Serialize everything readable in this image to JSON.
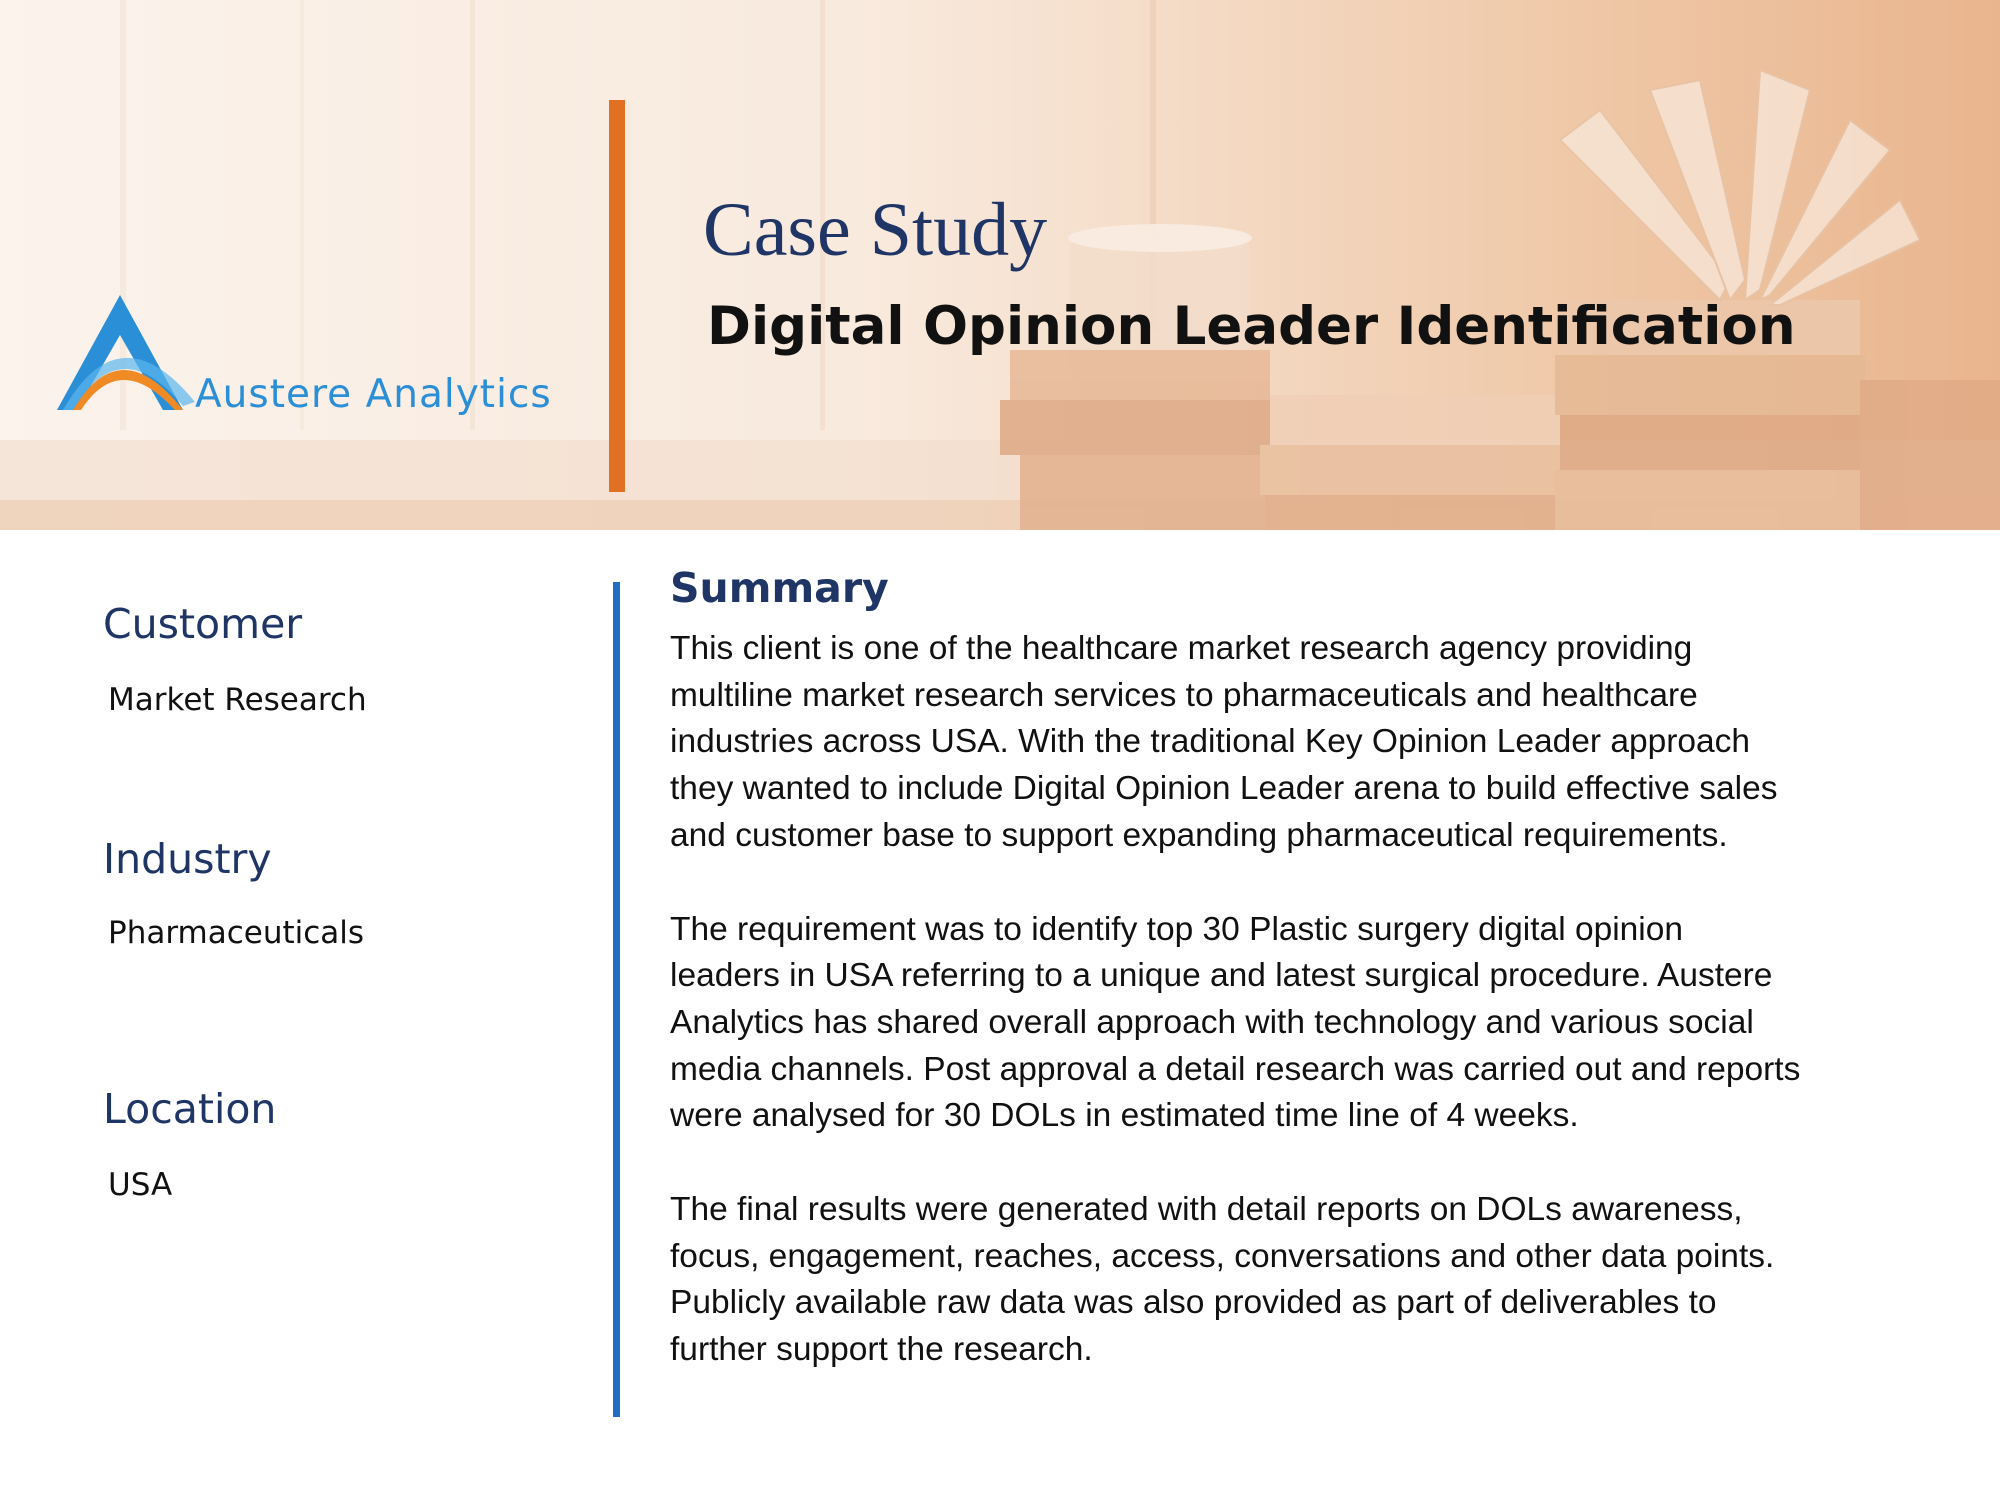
{
  "header": {
    "brand": "Austere Analytics",
    "label": "Case Study",
    "title": "Digital Opinion Leader Identification"
  },
  "colors": {
    "navy": "#1f3566",
    "orange_accent": "#e07022",
    "blue_accent": "#1f6fc7",
    "logo_blue": "#2a8fd6",
    "logo_orange": "#f08a24"
  },
  "icons": {
    "logo": "austere-analytics-logo-mark",
    "banner": "books-photo-background"
  },
  "sidebar": {
    "items": [
      {
        "heading": "Customer",
        "value": "Market Research"
      },
      {
        "heading": "Industry",
        "value": "Pharmaceuticals"
      },
      {
        "heading": "Location",
        "value": "USA"
      }
    ]
  },
  "summary": {
    "heading": "Summary",
    "paragraphs": [
      "This client is one of the healthcare market research agency providing\nmultiline market research services to pharmaceuticals and healthcare\nindustries across USA. With the traditional Key Opinion Leader approach\nthey wanted to include Digital Opinion Leader arena to build effective sales\nand customer base to support expanding pharmaceutical requirements.",
      "The requirement was to identify top 30 Plastic surgery digital opinion\nleaders in USA referring to a unique and latest surgical procedure.  Austere\nAnalytics has shared overall approach with technology and various social\nmedia channels. Post approval a detail research was carried out and reports\nwere analysed for 30 DOLs in estimated time line of 4 weeks.",
      "The final results were generated with detail reports on DOLs awareness,\nfocus, engagement, reaches, access, conversations and other data points.\nPublicly available raw data was also provided as part of deliverables to\nfurther support the research."
    ]
  }
}
